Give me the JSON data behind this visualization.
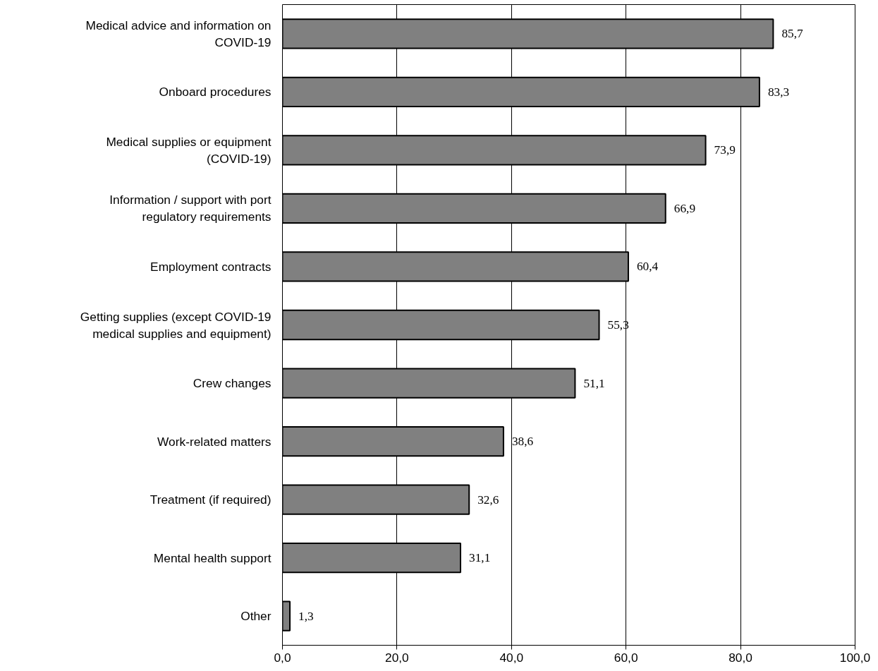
{
  "chart_data": {
    "type": "bar",
    "orientation": "horizontal",
    "categories": [
      "Medical advice and information on COVID-19",
      "Onboard procedures",
      "Medical supplies or equipment (COVID-19)",
      "Information / support with port regulatory requirements",
      "Employment contracts",
      "Getting supplies (except COVID-19 medical supplies and equipment)",
      "Crew changes",
      "Work-related matters",
      "Treatment (if required)",
      "Mental health support",
      "Other"
    ],
    "values": [
      85.7,
      83.3,
      73.9,
      66.9,
      60.4,
      55.3,
      51.1,
      38.6,
      32.6,
      31.1,
      1.3
    ],
    "value_labels": [
      "85,7",
      "83,3",
      "73,9",
      "66,9",
      "60,4",
      "55,3",
      "51,1",
      "38,6",
      "32,6",
      "31,1",
      "1,3"
    ],
    "color": "#808080",
    "xlim": [
      0,
      100
    ],
    "xticks": [
      {
        "value": 0,
        "label": "0,0"
      },
      {
        "value": 20,
        "label": "20,0"
      },
      {
        "value": 40,
        "label": "40,0"
      },
      {
        "value": 60,
        "label": "60,0"
      },
      {
        "value": 80,
        "label": "80,0"
      },
      {
        "value": 100,
        "label": "100,0"
      }
    ],
    "grid": "x"
  }
}
